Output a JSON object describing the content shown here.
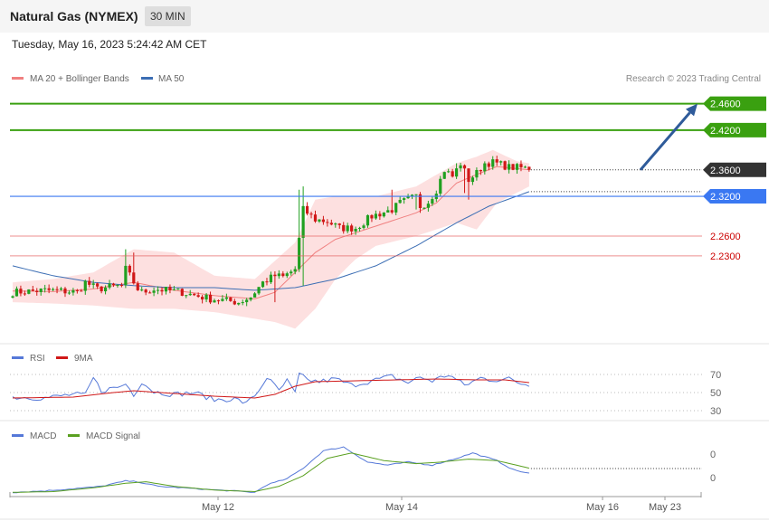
{
  "header": {
    "title": "Natural Gas (NYMEX)",
    "timeframe": "30 MIN",
    "datetime": "Tuesday, May 16, 2023 5:24:42 AM CET"
  },
  "legend": {
    "ma20_label": "MA 20 + Bollinger Bands",
    "ma50_label": "MA 50",
    "credit": "Research © 2023 Trading Central"
  },
  "colors": {
    "bull": "#20a020",
    "bear": "#d01818",
    "ma20": "#f08080",
    "ma50": "#3c6eb4",
    "band": "#fde0e0",
    "resistance": "#3aa010",
    "support": "#e66060",
    "pivot": "#3a78f2",
    "current": "#333333",
    "rsi": "#5578d8",
    "rsi_ma": "#d01818",
    "macd": "#5578d8",
    "macd_signal": "#5aa020"
  },
  "chart_data": [
    {
      "type": "candlestick",
      "ylim": [
        2.1,
        2.48
      ],
      "x_ticks": [
        "May 12",
        "May 14",
        "May 16",
        "May 23"
      ],
      "levels": [
        {
          "value": 2.46,
          "label": "2.4600",
          "kind": "resistance"
        },
        {
          "value": 2.42,
          "label": "2.4200",
          "kind": "resistance"
        },
        {
          "value": 2.36,
          "label": "2.3600",
          "kind": "current"
        },
        {
          "value": 2.32,
          "label": "2.3200",
          "kind": "pivot"
        },
        {
          "value": 2.26,
          "label": "2.2600",
          "kind": "support"
        },
        {
          "value": 2.23,
          "label": "2.2300",
          "kind": "support"
        }
      ],
      "close_anchors": [
        [
          0,
          2.175
        ],
        [
          8,
          2.178
        ],
        [
          12,
          2.177
        ],
        [
          16,
          2.175
        ],
        [
          18,
          2.19
        ],
        [
          21,
          2.18
        ],
        [
          24,
          2.183
        ],
        [
          27,
          2.185
        ],
        [
          28,
          2.21
        ],
        [
          31,
          2.18
        ],
        [
          32,
          2.175
        ],
        [
          35,
          2.18
        ],
        [
          38,
          2.178
        ],
        [
          42,
          2.175
        ],
        [
          44,
          2.172
        ],
        [
          49,
          2.165
        ],
        [
          52,
          2.163
        ],
        [
          56,
          2.16
        ],
        [
          59,
          2.168
        ],
        [
          62,
          2.19
        ],
        [
          65,
          2.2
        ],
        [
          67,
          2.198
        ],
        [
          70,
          2.21
        ],
        [
          72,
          2.3
        ],
        [
          75,
          2.285
        ],
        [
          78,
          2.282
        ],
        [
          81,
          2.272
        ],
        [
          85,
          2.272
        ],
        [
          89,
          2.29
        ],
        [
          94,
          2.3
        ],
        [
          96,
          2.31
        ],
        [
          98,
          2.315
        ],
        [
          100,
          2.32
        ],
        [
          101,
          2.305
        ],
        [
          103,
          2.312
        ],
        [
          105,
          2.33
        ],
        [
          107,
          2.36
        ],
        [
          109,
          2.35
        ],
        [
          111,
          2.37
        ],
        [
          113,
          2.345
        ],
        [
          115,
          2.355
        ],
        [
          117,
          2.37
        ],
        [
          119,
          2.371
        ],
        [
          121,
          2.368
        ],
        [
          123,
          2.364
        ],
        [
          126,
          2.363
        ],
        [
          128,
          2.362
        ]
      ],
      "wick_spikes": [
        [
          71,
          2.33
        ],
        [
          72,
          2.335
        ],
        [
          28,
          2.24
        ],
        [
          30,
          2.235
        ],
        [
          94,
          2.33
        ],
        [
          110,
          2.37
        ],
        [
          123,
          2.372
        ]
      ],
      "wick_dips": [
        [
          65,
          2.16
        ],
        [
          72,
          2.185
        ],
        [
          100,
          2.3
        ],
        [
          101,
          2.295
        ],
        [
          112,
          2.325
        ],
        [
          113,
          2.315
        ]
      ],
      "ma20": [
        [
          0,
          2.177
        ],
        [
          10,
          2.176
        ],
        [
          20,
          2.18
        ],
        [
          30,
          2.19
        ],
        [
          40,
          2.178
        ],
        [
          50,
          2.17
        ],
        [
          60,
          2.165
        ],
        [
          65,
          2.175
        ],
        [
          70,
          2.205
        ],
        [
          75,
          2.235
        ],
        [
          80,
          2.255
        ],
        [
          85,
          2.265
        ],
        [
          90,
          2.275
        ],
        [
          95,
          2.285
        ],
        [
          100,
          2.295
        ],
        [
          105,
          2.31
        ],
        [
          110,
          2.34
        ],
        [
          115,
          2.353
        ],
        [
          120,
          2.365
        ],
        [
          128,
          2.36
        ]
      ],
      "ma50": [
        [
          0,
          2.215
        ],
        [
          10,
          2.2
        ],
        [
          20,
          2.19
        ],
        [
          30,
          2.185
        ],
        [
          40,
          2.182
        ],
        [
          50,
          2.182
        ],
        [
          60,
          2.178
        ],
        [
          70,
          2.182
        ],
        [
          80,
          2.195
        ],
        [
          90,
          2.215
        ],
        [
          100,
          2.245
        ],
        [
          110,
          2.28
        ],
        [
          118,
          2.305
        ],
        [
          128,
          2.327
        ]
      ],
      "band_upper": [
        [
          0,
          2.19
        ],
        [
          10,
          2.195
        ],
        [
          20,
          2.205
        ],
        [
          30,
          2.24
        ],
        [
          40,
          2.235
        ],
        [
          50,
          2.2
        ],
        [
          60,
          2.195
        ],
        [
          70,
          2.25
        ],
        [
          75,
          2.315
        ],
        [
          80,
          2.32
        ],
        [
          90,
          2.32
        ],
        [
          100,
          2.335
        ],
        [
          110,
          2.37
        ],
        [
          115,
          2.38
        ],
        [
          119,
          2.39
        ],
        [
          125,
          2.373
        ],
        [
          128,
          2.37
        ]
      ],
      "band_lower": [
        [
          0,
          2.16
        ],
        [
          10,
          2.158
        ],
        [
          20,
          2.155
        ],
        [
          30,
          2.15
        ],
        [
          40,
          2.15
        ],
        [
          50,
          2.145
        ],
        [
          60,
          2.135
        ],
        [
          65,
          2.13
        ],
        [
          70,
          2.12
        ],
        [
          75,
          2.15
        ],
        [
          80,
          2.195
        ],
        [
          85,
          2.225
        ],
        [
          90,
          2.245
        ],
        [
          100,
          2.26
        ],
        [
          110,
          2.28
        ],
        [
          115,
          2.27
        ],
        [
          120,
          2.31
        ],
        [
          128,
          2.335
        ]
      ],
      "forecast_arrow": {
        "from": 2.36,
        "to": 2.46
      }
    },
    {
      "type": "line",
      "title": "RSI",
      "ylim": [
        27,
        77
      ],
      "y_ticks": [
        "70",
        "50",
        "30"
      ],
      "series": [
        {
          "name": "RSI",
          "values": [
            [
              0,
              45
            ],
            [
              8,
              44
            ],
            [
              15,
              48
            ],
            [
              18,
              47
            ],
            [
              20,
              66
            ],
            [
              22,
              52
            ],
            [
              27,
              57
            ],
            [
              28,
              60
            ],
            [
              30,
              48
            ],
            [
              32,
              62
            ],
            [
              35,
              51
            ],
            [
              40,
              48
            ],
            [
              45,
              50
            ],
            [
              50,
              42
            ],
            [
              55,
              43
            ],
            [
              58,
              38
            ],
            [
              61,
              52
            ],
            [
              63,
              67
            ],
            [
              66,
              52
            ],
            [
              68,
              63
            ],
            [
              70,
              49
            ],
            [
              71,
              70
            ],
            [
              73,
              64
            ],
            [
              76,
              62
            ],
            [
              80,
              65
            ],
            [
              84,
              58
            ],
            [
              90,
              64
            ],
            [
              94,
              68
            ],
            [
              98,
              61
            ],
            [
              101,
              67
            ],
            [
              104,
              63
            ],
            [
              108,
              70
            ],
            [
              112,
              58
            ],
            [
              116,
              66
            ],
            [
              119,
              64
            ],
            [
              123,
              65
            ],
            [
              126,
              60
            ],
            [
              128,
              59
            ]
          ]
        },
        {
          "name": "9MA",
          "values": [
            [
              0,
              44
            ],
            [
              15,
              45
            ],
            [
              25,
              50
            ],
            [
              30,
              52
            ],
            [
              40,
              49
            ],
            [
              50,
              46
            ],
            [
              60,
              44
            ],
            [
              65,
              48
            ],
            [
              70,
              57
            ],
            [
              75,
              62
            ],
            [
              85,
              63
            ],
            [
              95,
              64
            ],
            [
              105,
              65
            ],
            [
              115,
              64
            ],
            [
              122,
              64
            ],
            [
              128,
              61
            ]
          ]
        }
      ]
    },
    {
      "type": "line",
      "title": "MACD",
      "y_ticks": [
        "0",
        "0"
      ],
      "series": [
        {
          "name": "MACD",
          "values": [
            [
              0,
              0
            ],
            [
              8,
              2
            ],
            [
              18,
              6
            ],
            [
              22,
              8
            ],
            [
              28,
              15
            ],
            [
              31,
              14
            ],
            [
              36,
              8
            ],
            [
              48,
              4
            ],
            [
              60,
              0
            ],
            [
              63,
              10
            ],
            [
              68,
              18
            ],
            [
              72,
              32
            ],
            [
              77,
              55
            ],
            [
              82,
              60
            ],
            [
              88,
              40
            ],
            [
              93,
              36
            ],
            [
              98,
              40
            ],
            [
              104,
              36
            ],
            [
              110,
              45
            ],
            [
              114,
              52
            ],
            [
              120,
              42
            ],
            [
              124,
              30
            ],
            [
              128,
              25
            ]
          ]
        },
        {
          "name": "MACD Signal",
          "values": [
            [
              0,
              0
            ],
            [
              10,
              1
            ],
            [
              20,
              6
            ],
            [
              28,
              12
            ],
            [
              33,
              14
            ],
            [
              40,
              8
            ],
            [
              50,
              3
            ],
            [
              60,
              1
            ],
            [
              66,
              8
            ],
            [
              72,
              22
            ],
            [
              78,
              45
            ],
            [
              84,
              52
            ],
            [
              92,
              42
            ],
            [
              100,
              38
            ],
            [
              106,
              40
            ],
            [
              113,
              44
            ],
            [
              120,
              42
            ],
            [
              128,
              32
            ]
          ]
        }
      ]
    }
  ],
  "rsi_legend": {
    "rsi_label": "RSI",
    "ma_label": "9MA"
  },
  "macd_legend": {
    "macd_label": "MACD",
    "signal_label": "MACD Signal"
  },
  "icons": [
    "legend-swatch"
  ]
}
